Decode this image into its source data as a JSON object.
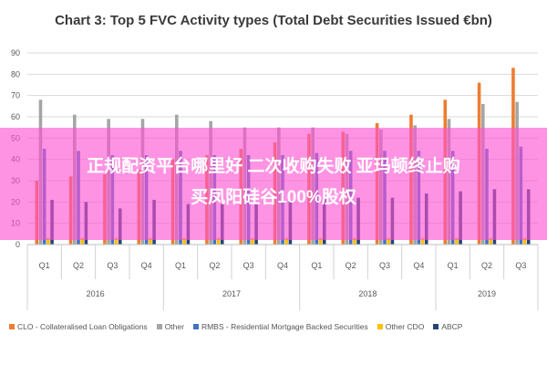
{
  "banner": {
    "line1": "正规配资平台哪里好 二次收购失败 亚玛顿终止购",
    "line2": "买凤阳硅谷100%股权"
  },
  "chart_data": {
    "type": "bar",
    "title": "Chart 3: Top 5 FVC Activity types (Total Debt Securities Issued €bn)",
    "ylim": [
      0,
      90
    ],
    "yticks": [
      "0",
      "10",
      "20",
      "30",
      "40",
      "50",
      "60",
      "70",
      "80",
      "90"
    ],
    "grid": true,
    "legend_position": "bottom",
    "quarters": [
      "Q1",
      "Q2",
      "Q3",
      "Q4",
      "Q1",
      "Q2",
      "Q3",
      "Q4",
      "Q1",
      "Q2",
      "Q3",
      "Q4",
      "Q1",
      "Q2",
      "Q3"
    ],
    "years": [
      {
        "label": "2016",
        "count": 4
      },
      {
        "label": "2017",
        "count": 4
      },
      {
        "label": "2018",
        "count": 4
      },
      {
        "label": "2019",
        "count": 3
      }
    ],
    "series": [
      {
        "name": "CLO - Collateralised Loan Obligations",
        "color": "#ed7d31",
        "values": [
          30,
          32,
          33,
          35,
          40,
          42,
          45,
          48,
          52,
          53,
          57,
          61,
          68,
          76,
          83
        ]
      },
      {
        "name": "Other",
        "color": "#a5a5a5",
        "values": [
          68,
          61,
          59,
          59,
          61,
          58,
          55,
          55,
          55,
          52,
          54,
          56,
          59,
          66,
          67
        ]
      },
      {
        "name": "RMBS - Residential Mortgage Backed Securities",
        "color": "#4472c4",
        "values": [
          45,
          44,
          42,
          42,
          44,
          42,
          42,
          42,
          43,
          44,
          44,
          44,
          44,
          45,
          46
        ]
      },
      {
        "name": "Other CDO",
        "color": "#ffc000",
        "values": [
          3,
          3,
          3,
          3,
          3,
          3,
          3,
          3,
          3,
          3,
          3,
          3,
          3,
          3,
          3
        ]
      },
      {
        "name": "ABCP",
        "color": "#264478",
        "values": [
          21,
          20,
          17,
          21,
          19,
          19,
          19,
          21,
          22,
          22,
          22,
          24,
          25,
          26,
          26
        ]
      }
    ]
  }
}
